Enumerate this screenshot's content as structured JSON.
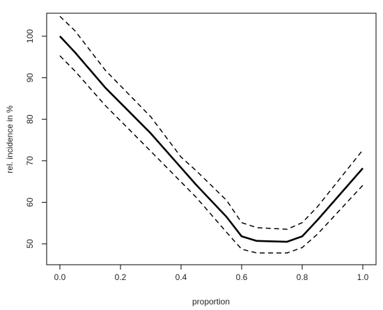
{
  "chart_data": {
    "type": "line",
    "title": "",
    "xlabel": "proportion",
    "ylabel": "rel. incidence in %",
    "xlim": [
      0.0,
      1.0
    ],
    "ylim": [
      48,
      105
    ],
    "x_ticks": [
      {
        "value": 0.0,
        "label": "0.0"
      },
      {
        "value": 0.2,
        "label": "0.2"
      },
      {
        "value": 0.4,
        "label": "0.4"
      },
      {
        "value": 0.6,
        "label": "0.6"
      },
      {
        "value": 0.8,
        "label": "0.8"
      },
      {
        "value": 1.0,
        "label": "1.0"
      }
    ],
    "y_ticks": [
      {
        "value": 50,
        "label": "50"
      },
      {
        "value": 60,
        "label": "60"
      },
      {
        "value": 70,
        "label": "70"
      },
      {
        "value": 80,
        "label": "80"
      },
      {
        "value": 90,
        "label": "90"
      },
      {
        "value": 100,
        "label": "100"
      }
    ],
    "grid": false,
    "series": [
      {
        "style": "solid",
        "color": "#000000",
        "points": [
          [
            0.0,
            100.0
          ],
          [
            0.05,
            96.1
          ],
          [
            0.15,
            87.6
          ],
          [
            0.3,
            76.6
          ],
          [
            0.45,
            64.2
          ],
          [
            0.55,
            56.5
          ],
          [
            0.6,
            51.8
          ],
          [
            0.65,
            50.7
          ],
          [
            0.75,
            50.5
          ],
          [
            0.8,
            51.8
          ],
          [
            0.85,
            55.7
          ],
          [
            1.0,
            68.2
          ]
        ]
      },
      {
        "style": "dashed",
        "color": "#000000",
        "points": [
          [
            0.0,
            104.8
          ],
          [
            0.05,
            101.3
          ],
          [
            0.15,
            91.8
          ],
          [
            0.3,
            80.6
          ],
          [
            0.4,
            70.9
          ],
          [
            0.45,
            67.6
          ],
          [
            0.55,
            60.5
          ],
          [
            0.6,
            55.1
          ],
          [
            0.65,
            53.9
          ],
          [
            0.75,
            53.5
          ],
          [
            0.8,
            55.1
          ],
          [
            0.85,
            58.9
          ],
          [
            1.0,
            72.6
          ]
        ]
      },
      {
        "style": "dashed",
        "color": "#000000",
        "points": [
          [
            0.0,
            95.3
          ],
          [
            0.05,
            91.6
          ],
          [
            0.15,
            83.3
          ],
          [
            0.3,
            72.3
          ],
          [
            0.45,
            61.2
          ],
          [
            0.55,
            52.8
          ],
          [
            0.6,
            48.7
          ],
          [
            0.65,
            47.8
          ],
          [
            0.75,
            47.8
          ],
          [
            0.8,
            49.1
          ],
          [
            0.85,
            52.3
          ],
          [
            1.0,
            64.1
          ]
        ]
      }
    ]
  }
}
